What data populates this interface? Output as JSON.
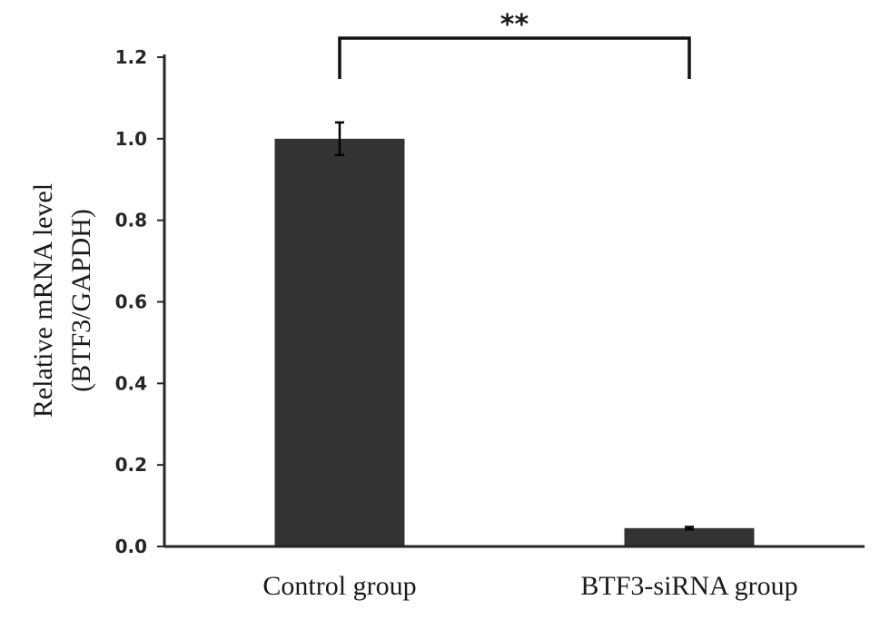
{
  "chart_data": {
    "type": "bar",
    "categories": [
      "Control group",
      "BTF3-siRNA group"
    ],
    "values": [
      1.0,
      0.045
    ],
    "error": [
      0.04,
      0.003
    ],
    "ylabel_lines": [
      "Relative mRNA level",
      "(BTF3/GAPDH)"
    ],
    "xlabel": "",
    "ylim": [
      0,
      1.2
    ],
    "yticks": [
      0.0,
      0.2,
      0.4,
      0.6,
      0.8,
      1.0,
      1.2
    ],
    "ytick_labels": [
      "0.0",
      "0.2",
      "0.4",
      "0.6",
      "0.8",
      "1.0",
      "1.2"
    ],
    "grid": false,
    "significance": {
      "label": "**",
      "between": [
        0,
        1
      ]
    },
    "colors": {
      "bar": "#333333",
      "axis": "#262626"
    }
  }
}
